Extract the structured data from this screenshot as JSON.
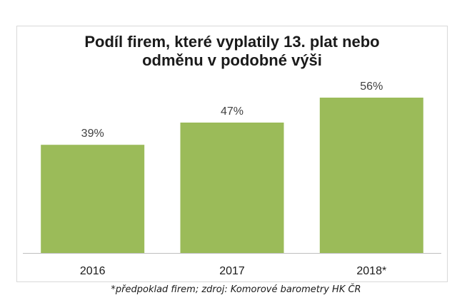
{
  "chart_data": {
    "type": "bar",
    "title_lines": [
      "Podíl firem, které vyplatily 13. plat nebo",
      "odměnu v podobné výši"
    ],
    "categories": [
      "2016",
      "2017",
      "2018*"
    ],
    "values": [
      39,
      47,
      56
    ],
    "data_labels": [
      "39%",
      "47%",
      "56%"
    ],
    "ylim": [
      0,
      56
    ],
    "bar_color": "#9bbb59",
    "axis_color": "#bfbfbf",
    "grid": false,
    "legend": "none"
  },
  "footnote": "*předpoklad firem; zdroj: Komorové barometry HK ČR"
}
